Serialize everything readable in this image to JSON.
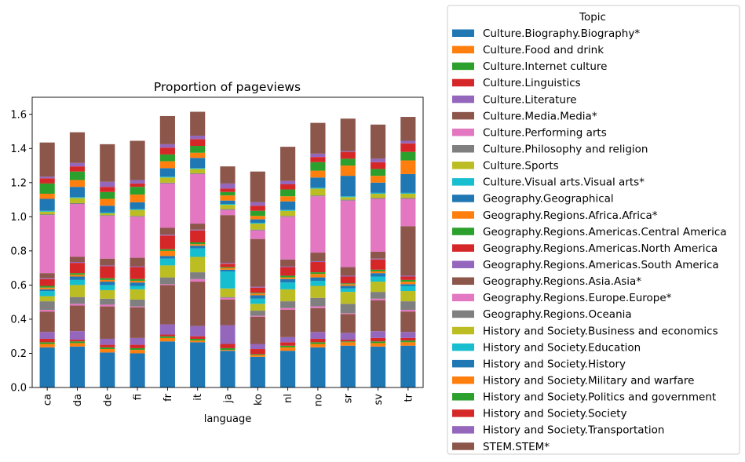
{
  "chart_data": {
    "type": "bar",
    "stacked": true,
    "title": "Proportion of pageviews",
    "xlabel": "language",
    "ylabel": "",
    "ylim": [
      0,
      1.7
    ],
    "yticks": [
      "0.0",
      "0.2",
      "0.4",
      "0.6",
      "0.8",
      "1.0",
      "1.2",
      "1.4",
      "1.6"
    ],
    "categories": [
      "ca",
      "da",
      "de",
      "fi",
      "fr",
      "it",
      "ja",
      "ko",
      "nl",
      "no",
      "sr",
      "sv",
      "tr"
    ],
    "grid": false,
    "legend": {
      "title": "Topic",
      "placement": "outside-right"
    },
    "series": [
      {
        "name": "Culture.Biography.Biography*",
        "color": "#1f77b4",
        "values": [
          0.235,
          0.24,
          0.205,
          0.2,
          0.27,
          0.265,
          0.215,
          0.18,
          0.215,
          0.235,
          0.245,
          0.24,
          0.245
        ]
      },
      {
        "name": "Culture.Food and drink",
        "color": "#ff7f0e",
        "values": [
          0.02,
          0.02,
          0.02,
          0.02,
          0.02,
          0.01,
          0.005,
          0.01,
          0.02,
          0.02,
          0.02,
          0.02,
          0.02
        ]
      },
      {
        "name": "Culture.Internet culture",
        "color": "#2ca02c",
        "values": [
          0.01,
          0.01,
          0.01,
          0.01,
          0.01,
          0.01,
          0.01,
          0.005,
          0.01,
          0.01,
          0.005,
          0.01,
          0.01
        ]
      },
      {
        "name": "Culture.Linguistics",
        "color": "#d62728",
        "values": [
          0.02,
          0.01,
          0.015,
          0.02,
          0.01,
          0.015,
          0.025,
          0.03,
          0.02,
          0.02,
          0.01,
          0.02,
          0.015
        ]
      },
      {
        "name": "Culture.Literature",
        "color": "#9467bd",
        "values": [
          0.04,
          0.05,
          0.035,
          0.04,
          0.06,
          0.06,
          0.11,
          0.03,
          0.03,
          0.04,
          0.04,
          0.04,
          0.035
        ]
      },
      {
        "name": "Culture.Media.Media*",
        "color": "#8c564b",
        "values": [
          0.12,
          0.15,
          0.19,
          0.18,
          0.23,
          0.26,
          0.15,
          0.16,
          0.16,
          0.14,
          0.11,
          0.18,
          0.12
        ]
      },
      {
        "name": "Culture.Performing arts",
        "color": "#e377c2",
        "values": [
          0.01,
          0.01,
          0.01,
          0.005,
          0.005,
          0.015,
          0.01,
          0.005,
          0.01,
          0.01,
          0.005,
          0.01,
          0.01
        ]
      },
      {
        "name": "Culture.Philosophy and religion",
        "color": "#7f7f7f",
        "values": [
          0.05,
          0.04,
          0.035,
          0.04,
          0.04,
          0.04,
          0.005,
          0.03,
          0.04,
          0.05,
          0.055,
          0.04,
          0.05
        ]
      },
      {
        "name": "Culture.Sports",
        "color": "#bcbd22",
        "values": [
          0.03,
          0.07,
          0.05,
          0.06,
          0.07,
          0.09,
          0.05,
          0.04,
          0.07,
          0.07,
          0.07,
          0.06,
          0.06
        ]
      },
      {
        "name": "Culture.Visual arts.Visual arts*",
        "color": "#17becf",
        "values": [
          0.03,
          0.03,
          0.03,
          0.02,
          0.04,
          0.05,
          0.1,
          0.03,
          0.04,
          0.03,
          0.02,
          0.03,
          0.03
        ]
      },
      {
        "name": "Geography.Geographical",
        "color": "#1f77b4",
        "values": [
          0.01,
          0.02,
          0.02,
          0.02,
          0.015,
          0.015,
          0.01,
          0.02,
          0.02,
          0.02,
          0.015,
          0.02,
          0.01
        ]
      },
      {
        "name": "Geography.Regions.Africa.Africa*",
        "color": "#ff7f0e",
        "values": [
          0.01,
          0.01,
          0.01,
          0.01,
          0.03,
          0.01,
          0.01,
          0.01,
          0.01,
          0.02,
          0.01,
          0.01,
          0.015
        ]
      },
      {
        "name": "Geography.Regions.Americas.Central America",
        "color": "#2ca02c",
        "values": [
          0.01,
          0.01,
          0.01,
          0.01,
          0.01,
          0.01,
          0.005,
          0.005,
          0.01,
          0.01,
          0.005,
          0.01,
          0.01
        ]
      },
      {
        "name": "Geography.Regions.Americas.North America",
        "color": "#d62728",
        "values": [
          0.04,
          0.06,
          0.07,
          0.07,
          0.08,
          0.07,
          0.02,
          0.03,
          0.05,
          0.06,
          0.04,
          0.06,
          0.02
        ]
      },
      {
        "name": "Geography.Regions.Americas.South America",
        "color": "#9467bd",
        "values": [
          0.005,
          0.005,
          0.005,
          0.005,
          0.005,
          0.005,
          0.005,
          0.005,
          0.005,
          0.005,
          0.005,
          0.005,
          0.005
        ]
      },
      {
        "name": "Geography.Regions.Asia.Asia*",
        "color": "#8c564b",
        "values": [
          0.03,
          0.03,
          0.04,
          0.05,
          0.04,
          0.035,
          0.28,
          0.28,
          0.04,
          0.05,
          0.05,
          0.04,
          0.29
        ]
      },
      {
        "name": "Geography.Regions.Europe.Europe*",
        "color": "#e377c2",
        "values": [
          0.34,
          0.31,
          0.25,
          0.24,
          0.26,
          0.29,
          0.03,
          0.05,
          0.25,
          0.33,
          0.39,
          0.31,
          0.16
        ]
      },
      {
        "name": "Geography.Regions.Oceania",
        "color": "#7f7f7f",
        "values": [
          0.005,
          0.005,
          0.005,
          0.005,
          0.005,
          0.005,
          0.005,
          0.005,
          0.005,
          0.005,
          0.005,
          0.005,
          0.005
        ]
      },
      {
        "name": "History and Society.Business and economics",
        "color": "#bcbd22",
        "values": [
          0.015,
          0.03,
          0.01,
          0.035,
          0.03,
          0.025,
          0.025,
          0.035,
          0.03,
          0.04,
          0.015,
          0.025,
          0.025
        ]
      },
      {
        "name": "History and Society.Education",
        "color": "#17becf",
        "values": [
          0.005,
          0.005,
          0.005,
          0.005,
          0.005,
          0.005,
          0.005,
          0.005,
          0.005,
          0.005,
          0.005,
          0.005,
          0.005
        ]
      },
      {
        "name": "History and Society.History",
        "color": "#1f77b4",
        "values": [
          0.07,
          0.06,
          0.04,
          0.04,
          0.05,
          0.06,
          0.02,
          0.02,
          0.05,
          0.06,
          0.12,
          0.06,
          0.11
        ]
      },
      {
        "name": "History and Society.Military and warfare",
        "color": "#ff7f0e",
        "values": [
          0.03,
          0.04,
          0.04,
          0.045,
          0.04,
          0.03,
          0.03,
          0.02,
          0.03,
          0.04,
          0.06,
          0.04,
          0.08
        ]
      },
      {
        "name": "History and Society.Politics and government",
        "color": "#2ca02c",
        "values": [
          0.06,
          0.05,
          0.04,
          0.045,
          0.04,
          0.04,
          0.02,
          0.03,
          0.04,
          0.05,
          0.04,
          0.04,
          0.05
        ]
      },
      {
        "name": "History and Society.Society",
        "color": "#d62728",
        "values": [
          0.03,
          0.03,
          0.03,
          0.02,
          0.04,
          0.04,
          0.02,
          0.03,
          0.03,
          0.03,
          0.04,
          0.04,
          0.05
        ]
      },
      {
        "name": "History and Society.Transportation",
        "color": "#9467bd",
        "values": [
          0.01,
          0.02,
          0.03,
          0.02,
          0.02,
          0.02,
          0.03,
          0.02,
          0.02,
          0.02,
          0.005,
          0.02,
          0.015
        ]
      },
      {
        "name": "STEM.STEM*",
        "color": "#8c564b",
        "values": [
          0.2,
          0.18,
          0.22,
          0.23,
          0.165,
          0.14,
          0.1,
          0.18,
          0.2,
          0.18,
          0.19,
          0.2,
          0.14
        ]
      }
    ]
  }
}
